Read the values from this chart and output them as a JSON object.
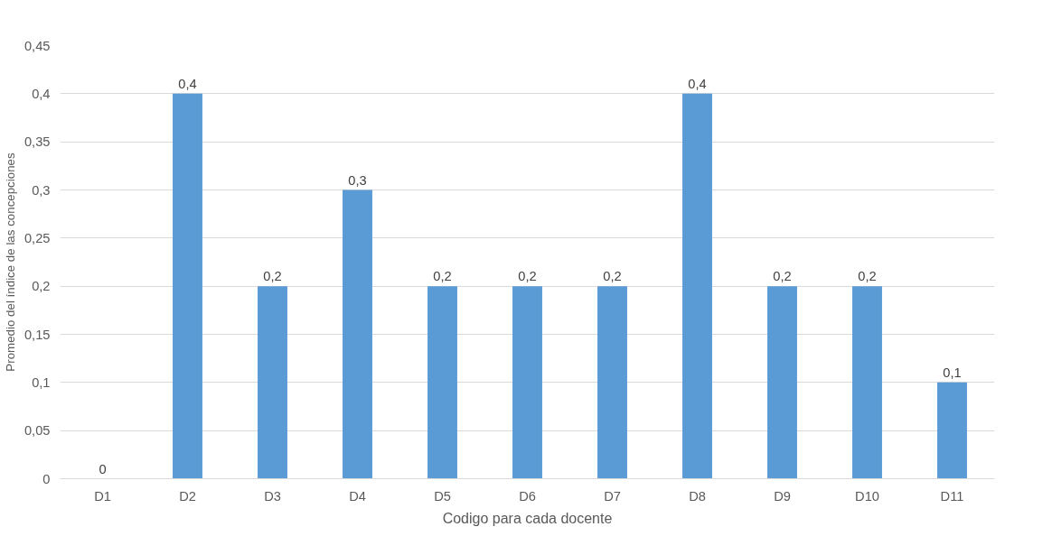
{
  "chart_data": {
    "type": "bar",
    "xlabel": "Codigo para cada docente",
    "ylabel": "Promedio del índice de las concepciones",
    "categories": [
      "D1",
      "D2",
      "D3",
      "D4",
      "D5",
      "D6",
      "D7",
      "D8",
      "D9",
      "D10",
      "D11"
    ],
    "values": [
      0,
      0.4,
      0.2,
      0.3,
      0.2,
      0.2,
      0.2,
      0.4,
      0.2,
      0.2,
      0.1
    ],
    "value_labels": [
      "0",
      "0,4",
      "0,2",
      "0,3",
      "0,2",
      "0,2",
      "0,2",
      "0,4",
      "0,2",
      "0,2",
      "0,1"
    ],
    "color": "#5b9bd5",
    "ylim": [
      0,
      0.45
    ],
    "yticks": [
      0,
      {
        "value": 0.05,
        "label": "0,05"
      },
      {
        "value": 0.1,
        "label": "0,1"
      },
      {
        "value": 0.15,
        "label": "0,15"
      },
      {
        "value": 0.2,
        "label": "0,2"
      },
      {
        "value": 0.25,
        "label": "0,25"
      },
      {
        "value": 0.3,
        "label": "0,3"
      },
      {
        "value": 0.35,
        "label": "0,35"
      },
      {
        "value": 0.4,
        "label": "0,4"
      },
      {
        "value": 0.45,
        "label": "0,45"
      }
    ],
    "grid": "y"
  }
}
